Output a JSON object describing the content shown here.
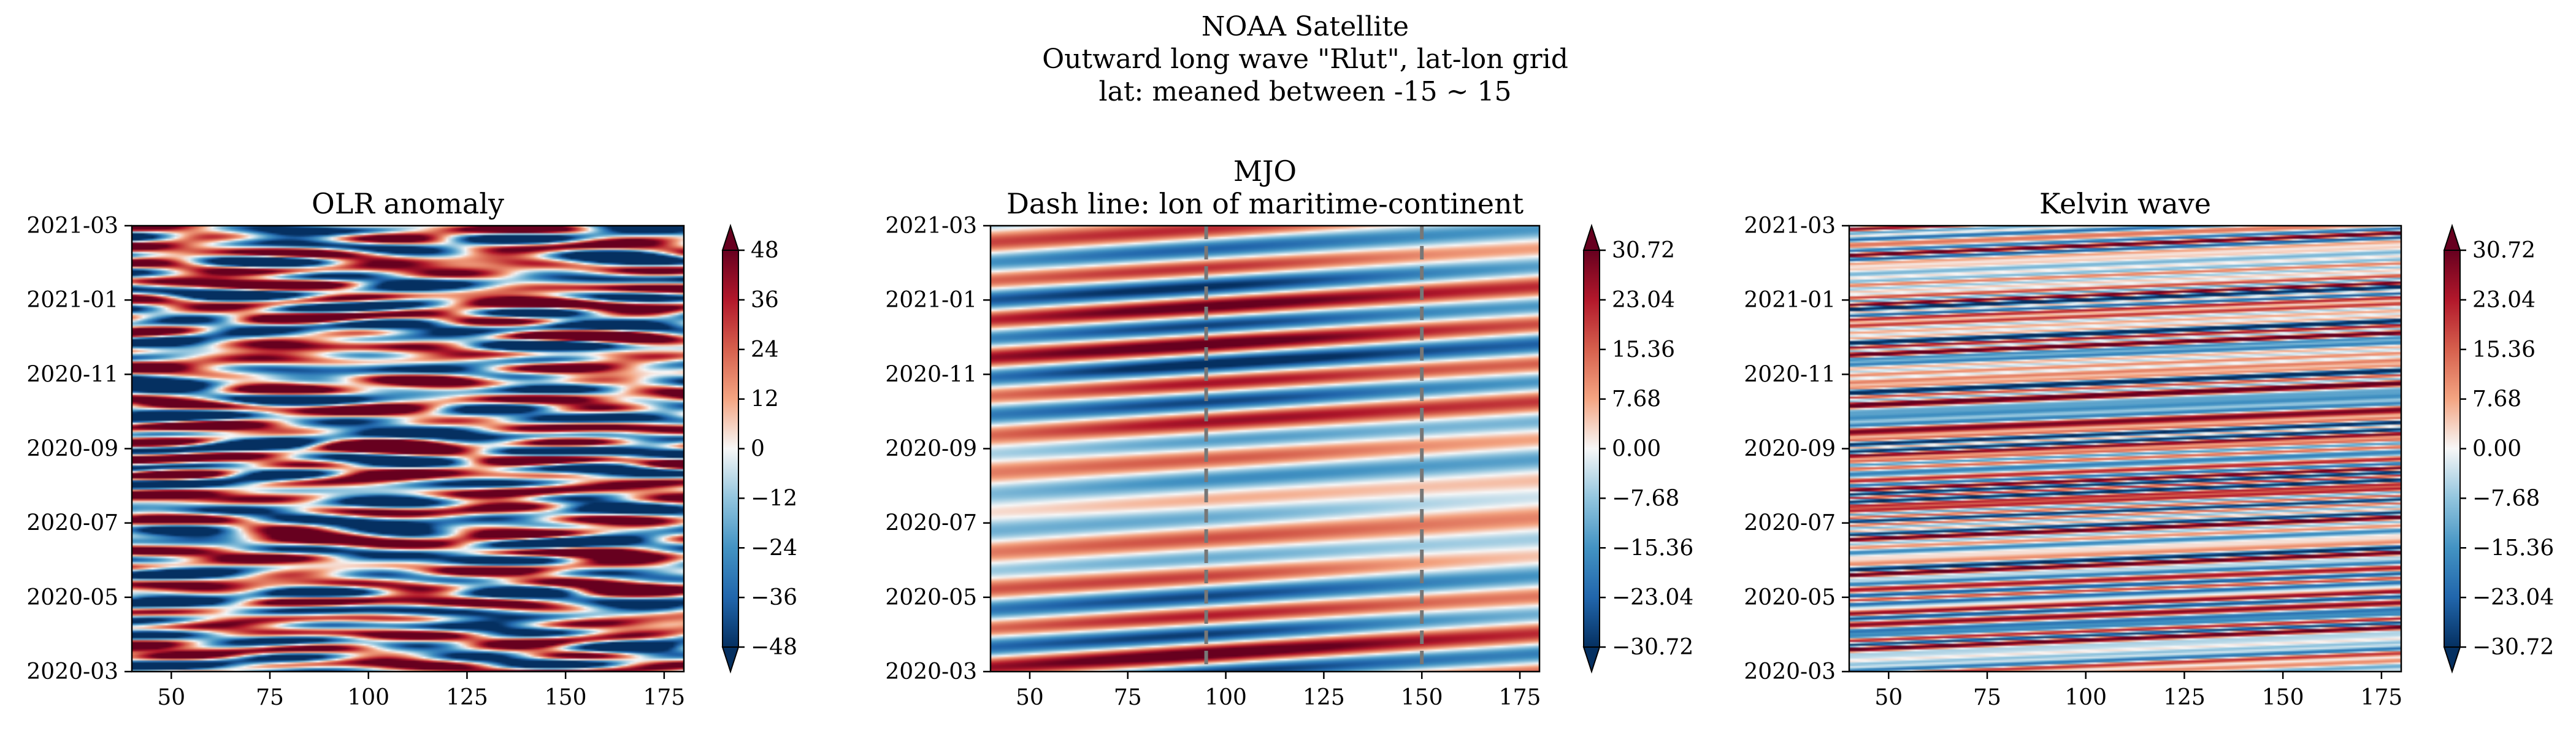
{
  "figure": {
    "suptitle": [
      "NOAA Satellite",
      "Outward long wave \"Rlut\", lat-lon grid",
      "lat: meaned between -15 ~ 15"
    ]
  },
  "chart_data": [
    {
      "type": "heatmap",
      "title": [
        "OLR anomaly"
      ],
      "x_range": [
        40,
        180
      ],
      "x_ticks": [
        "50",
        "75",
        "100",
        "125",
        "150",
        "175"
      ],
      "y_range": [
        "2020-03",
        "2021-03"
      ],
      "y_ticks": [
        "2020-03",
        "2020-05",
        "2020-07",
        "2020-09",
        "2020-11",
        "2021-01",
        "2021-03"
      ],
      "colormap": "RdBu_r",
      "colorbar": {
        "range": [
          -48,
          48
        ],
        "ticks": [
          "48",
          "36",
          "24",
          "12",
          "0",
          "−12",
          "−24",
          "−36",
          "−48"
        ],
        "extend": "both"
      },
      "pattern": "noise",
      "vlines": []
    },
    {
      "type": "heatmap",
      "title": [
        "MJO",
        "Dash line: lon of maritime-continent"
      ],
      "x_range": [
        40,
        180
      ],
      "x_ticks": [
        "50",
        "75",
        "100",
        "125",
        "150",
        "175"
      ],
      "y_range": [
        "2020-03",
        "2021-03"
      ],
      "y_ticks": [
        "2020-03",
        "2020-05",
        "2020-07",
        "2020-09",
        "2020-11",
        "2021-01",
        "2021-03"
      ],
      "colormap": "RdBu_r",
      "colorbar": {
        "range": [
          -30.72,
          30.72
        ],
        "ticks": [
          "30.72",
          "23.04",
          "15.36",
          "7.68",
          "0.00",
          "−7.68",
          "−15.36",
          "−23.04",
          "−30.72"
        ],
        "extend": "both"
      },
      "pattern": "mjo",
      "vlines": [
        95,
        150
      ]
    },
    {
      "type": "heatmap",
      "title": [
        "Kelvin wave"
      ],
      "x_range": [
        40,
        180
      ],
      "x_ticks": [
        "50",
        "75",
        "100",
        "125",
        "150",
        "175"
      ],
      "y_range": [
        "2020-03",
        "2021-03"
      ],
      "y_ticks": [
        "2020-03",
        "2020-05",
        "2020-07",
        "2020-09",
        "2020-11",
        "2021-01",
        "2021-03"
      ],
      "colormap": "RdBu_r",
      "colorbar": {
        "range": [
          -30.72,
          30.72
        ],
        "ticks": [
          "30.72",
          "23.04",
          "15.36",
          "7.68",
          "0.00",
          "−7.68",
          "−15.36",
          "−23.04",
          "−30.72"
        ],
        "extend": "both"
      },
      "pattern": "kelvin",
      "vlines": []
    }
  ]
}
